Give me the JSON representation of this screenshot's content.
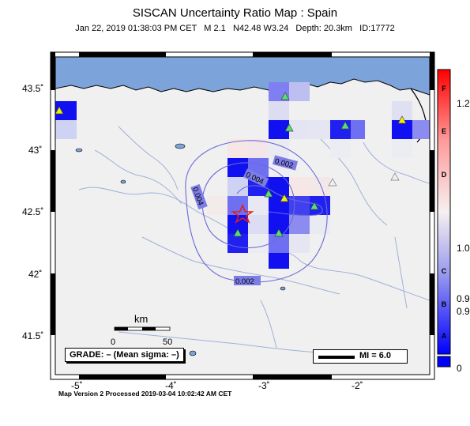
{
  "title": "SISCAN Uncertainty Ratio Map : Spain",
  "subtitle": "Jan 22, 2019 01:38:03 PM CET   M 2.1   N42.48 W3.24   Depth: 20.3km   ID:17772",
  "footer": "Map Version 2 Processed 2019-03-04 10:02:42 AM CET",
  "grade_label": "GRADE: – (Mean sigma: –)",
  "mi_label": "MI = 6.0",
  "scale": {
    "title": "km",
    "min": "0",
    "max": "50"
  },
  "axes": {
    "lat_ticks": [
      "43.5˚",
      "43˚",
      "42.5˚",
      "42˚",
      "41.5˚"
    ],
    "lon_ticks": [
      "-5˚",
      "-4˚",
      "-3˚",
      "-2˚"
    ]
  },
  "contours": [
    "0.002",
    "0.004",
    "0.004",
    "0.002"
  ],
  "colorbar": {
    "letters": [
      "F",
      "E",
      "D",
      "C",
      "B",
      "A"
    ],
    "values": [
      "1.2",
      "1.0",
      "0.9",
      "0.9",
      "0"
    ]
  },
  "epicenter": {
    "lat": 42.48,
    "lon": -3.24
  },
  "colors": {
    "sea": "#7da3db",
    "land": "#f0f0f0",
    "high": "#0000ff",
    "epicenter": "#e0201a"
  }
}
